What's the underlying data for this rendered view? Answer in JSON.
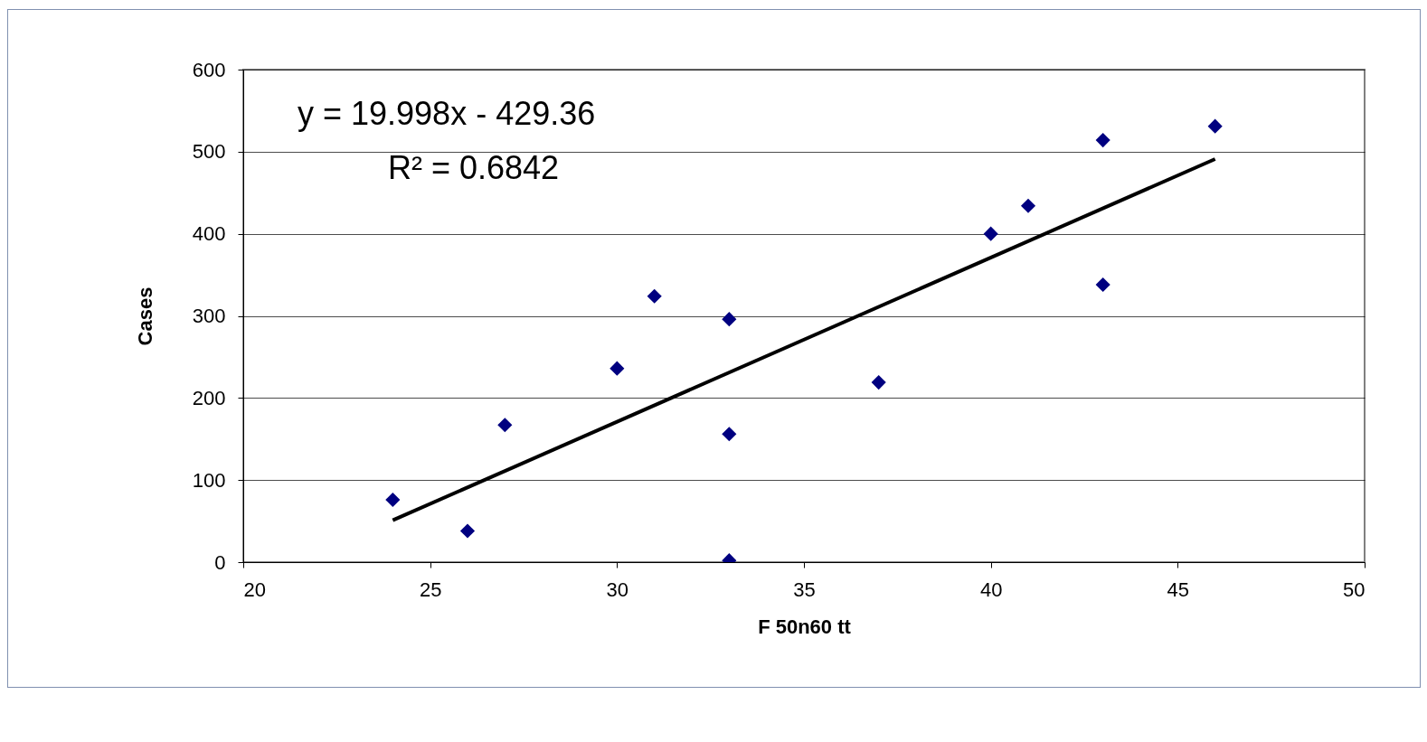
{
  "chart_data": {
    "type": "scatter",
    "xlabel": "F 50n60 tt",
    "ylabel": "Cases",
    "annotations": [
      "y = 19.998x - 429.36",
      "R² = 0.6842"
    ],
    "series": [
      {
        "color": "#000080",
        "marker": "diamond",
        "x": [
          24,
          26,
          27,
          30,
          31,
          33,
          33,
          33,
          37,
          40,
          41,
          43,
          43,
          46
        ],
        "values": [
          76,
          38,
          167,
          236,
          324,
          296,
          156,
          2,
          219,
          400,
          434,
          514,
          338,
          531
        ]
      },
      {
        "type": "line",
        "marker": "none",
        "color": "#000000",
        "x": [
          24,
          46
        ],
        "values": [
          51,
          491
        ]
      }
    ],
    "xlim": [
      20,
      50
    ],
    "xticks": [
      20,
      25,
      30,
      35,
      40,
      45,
      50
    ],
    "ylim": [
      0,
      600
    ],
    "yticks": [
      0,
      100,
      200,
      300,
      400,
      500,
      600
    ],
    "grid": "y"
  }
}
